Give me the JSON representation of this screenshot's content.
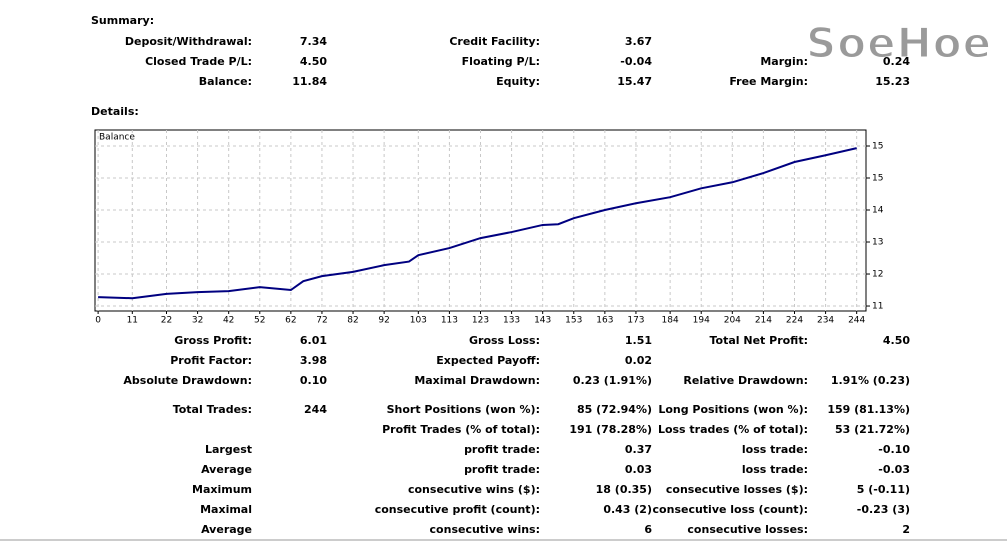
{
  "watermark": "SoeHoe",
  "summary": {
    "title": "Summary:",
    "rows": [
      [
        {
          "label": "Deposit/Withdrawal:",
          "value": "7.34"
        },
        {
          "label": "Credit Facility:",
          "value": "3.67"
        },
        null
      ],
      [
        {
          "label": "Closed Trade P/L:",
          "value": "4.50"
        },
        {
          "label": "Floating P/L:",
          "value": "-0.04"
        },
        {
          "label": "Margin:",
          "value": "0.24"
        }
      ],
      [
        {
          "label": "Balance:",
          "value": "11.84"
        },
        {
          "label": "Equity:",
          "value": "15.47"
        },
        {
          "label": "Free Margin:",
          "value": "15.23"
        }
      ]
    ]
  },
  "details_title": "Details:",
  "chart_data": {
    "type": "line",
    "title": "Balance",
    "color": "#000080",
    "grid": true,
    "x": [
      0,
      11,
      22,
      32,
      42,
      52,
      62,
      66,
      72,
      82,
      92,
      100,
      103,
      113,
      123,
      133,
      143,
      148,
      153,
      163,
      173,
      184,
      194,
      204,
      214,
      224,
      234,
      244
    ],
    "values": [
      11.15,
      11.12,
      11.24,
      11.29,
      11.32,
      11.43,
      11.35,
      11.6,
      11.74,
      11.86,
      12.05,
      12.15,
      12.33,
      12.53,
      12.81,
      12.98,
      13.18,
      13.2,
      13.37,
      13.6,
      13.79,
      13.96,
      14.21,
      14.38,
      14.64,
      14.95,
      15.14,
      15.34
    ],
    "xlim": [
      -1,
      247
    ],
    "ylim": [
      10.76,
      15.85
    ],
    "xticks": [
      0,
      11,
      22,
      32,
      42,
      52,
      62,
      72,
      82,
      92,
      103,
      113,
      123,
      133,
      143,
      153,
      163,
      173,
      184,
      194,
      204,
      214,
      224,
      234,
      244
    ],
    "yticks": [
      {
        "value": 10.9,
        "label": "11"
      },
      {
        "value": 11.8,
        "label": "12"
      },
      {
        "value": 12.7,
        "label": "13"
      },
      {
        "value": 13.6,
        "label": "14"
      },
      {
        "value": 14.5,
        "label": "15"
      },
      {
        "value": 15.4,
        "label": "15"
      }
    ]
  },
  "details": {
    "rows": [
      [
        {
          "label": "Gross Profit:",
          "value": "6.01"
        },
        {
          "label": "Gross Loss:",
          "value": "1.51"
        },
        {
          "label": "Total Net Profit:",
          "value": "4.50"
        }
      ],
      [
        {
          "label": "Profit Factor:",
          "value": "3.98"
        },
        {
          "label": "Expected Payoff:",
          "value": "0.02"
        },
        null
      ],
      [
        {
          "label": "Absolute Drawdown:",
          "value": "0.10"
        },
        {
          "label": "Maximal Drawdown:",
          "value": "0.23 (1.91%)"
        },
        {
          "label": "Relative Drawdown:",
          "value": "1.91% (0.23)"
        }
      ],
      [
        {
          "label": "Total Trades:",
          "value": "244"
        },
        {
          "label": "Short Positions (won %):",
          "value": "85 (72.94%)"
        },
        {
          "label": "Long Positions (won %):",
          "value": "159 (81.13%)"
        }
      ],
      [
        null,
        {
          "label": "Profit Trades (% of total):",
          "value": "191 (78.28%)"
        },
        {
          "label": "Loss trades (% of total):",
          "value": "53 (21.72%)"
        }
      ],
      [
        {
          "label": "Largest"
        },
        {
          "label": "profit trade:",
          "value": "0.37"
        },
        {
          "label": "loss trade:",
          "value": "-0.10"
        }
      ],
      [
        {
          "label": "Average"
        },
        {
          "label": "profit trade:",
          "value": "0.03"
        },
        {
          "label": "loss trade:",
          "value": "-0.03"
        }
      ],
      [
        {
          "label": "Maximum"
        },
        {
          "label": "consecutive wins ($):",
          "value": "18 (0.35)"
        },
        {
          "label": "consecutive losses ($):",
          "value": "5 (-0.11)"
        }
      ],
      [
        {
          "label": "Maximal"
        },
        {
          "label": "consecutive profit (count):",
          "value": "0.43 (2)"
        },
        {
          "label": "consecutive loss (count):",
          "value": "-0.23 (3)"
        }
      ],
      [
        {
          "label": "Average"
        },
        {
          "label": "consecutive wins:",
          "value": "6"
        },
        {
          "label": "consecutive losses:",
          "value": "2"
        }
      ]
    ]
  }
}
